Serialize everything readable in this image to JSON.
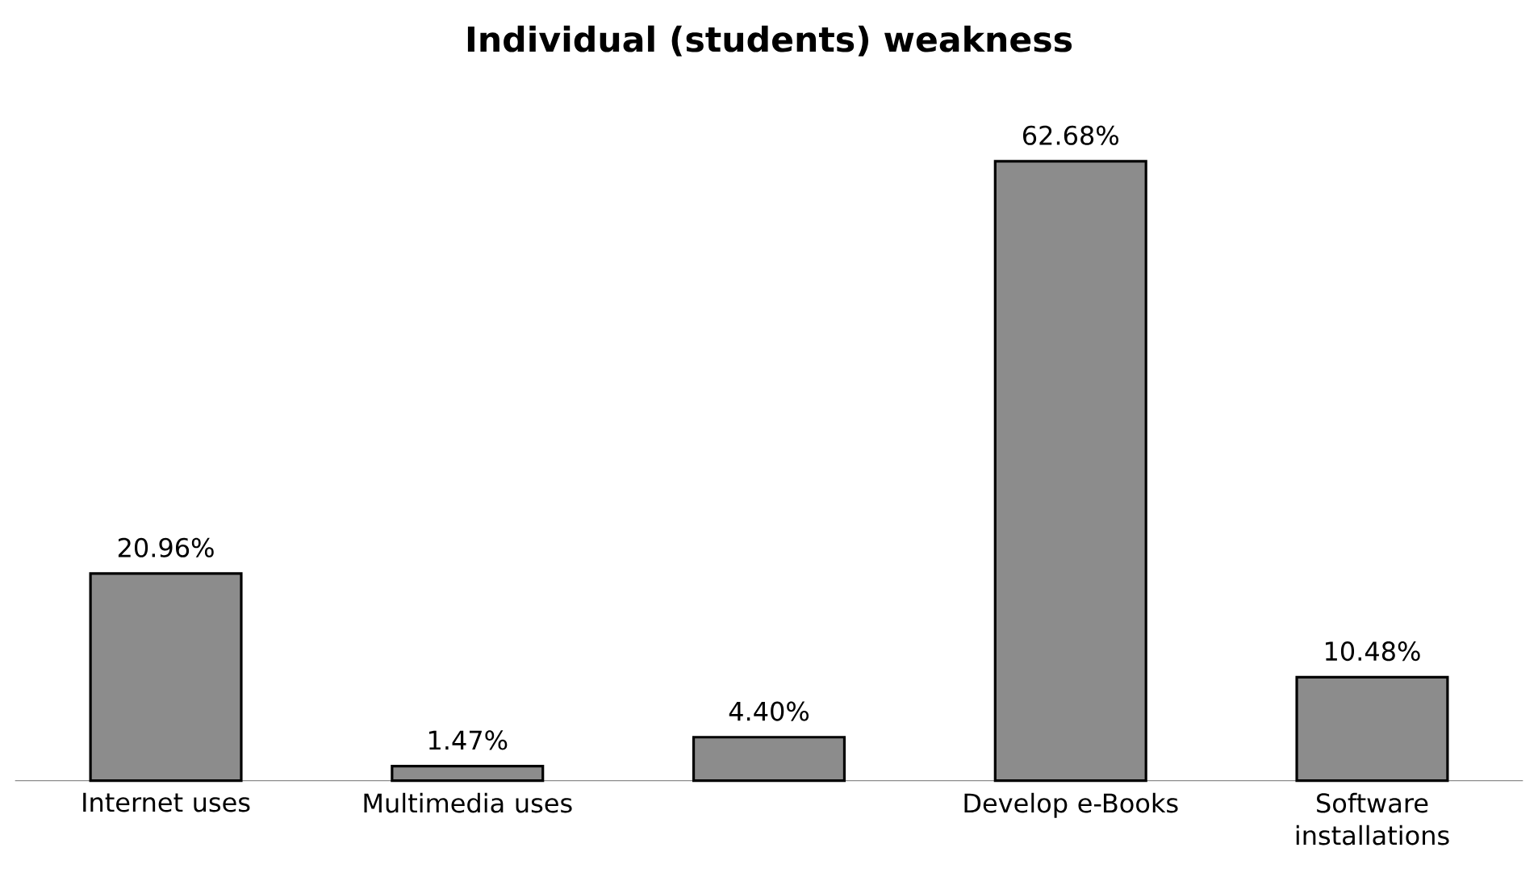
{
  "chart_data": {
    "type": "bar",
    "title": "Individual (students) weakness",
    "categories": [
      "Internet uses",
      "Multimedia uses",
      null,
      "Develop e-Books",
      "Software installations"
    ],
    "values": [
      20.96,
      1.47,
      4.4,
      62.68,
      10.48
    ],
    "value_labels": [
      "20.96%",
      "1.47%",
      "4.40%",
      "62.68%",
      "10.48%"
    ],
    "color": "#8c8c8c"
  }
}
